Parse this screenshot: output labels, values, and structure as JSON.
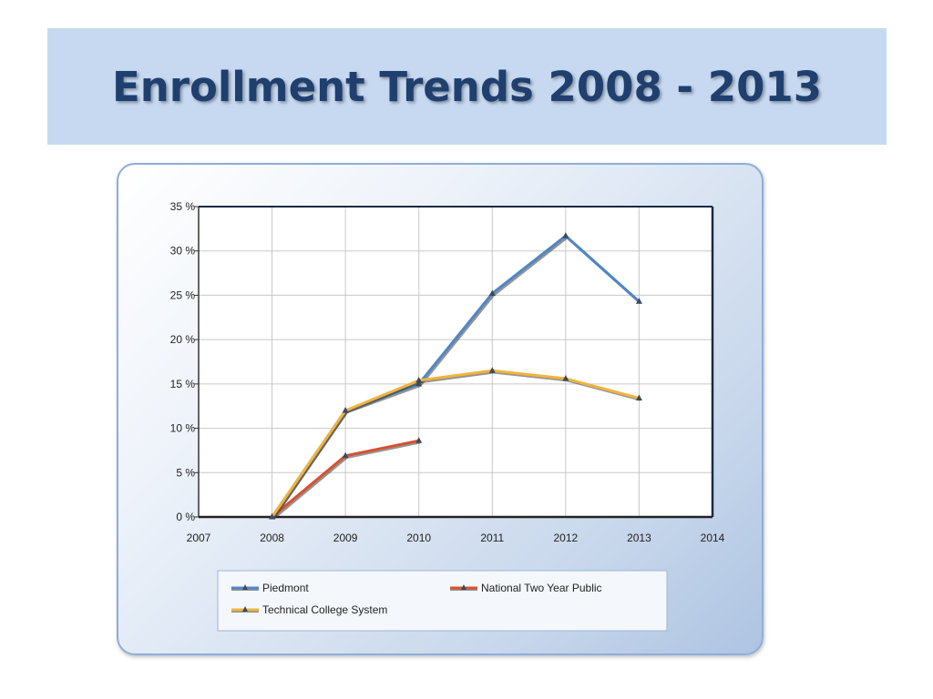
{
  "slide": {
    "title": "Enrollment Trends 2008 - 2013"
  },
  "chart_data": {
    "type": "line",
    "title": "",
    "xlabel": "",
    "ylabel": "",
    "xlim": [
      2007,
      2014
    ],
    "ylim": [
      0,
      35
    ],
    "x_ticks": [
      "2007",
      "2008",
      "2009",
      "2010",
      "2011",
      "2012",
      "2013",
      "2014"
    ],
    "y_ticks": [
      "0 %",
      "5 %",
      "10 %",
      "15 %",
      "20 %",
      "25 %",
      "30 %",
      "35 %"
    ],
    "grid": true,
    "legend_position": "bottom",
    "series": [
      {
        "name": "Piedmont",
        "color": "#4f86c6",
        "points": [
          [
            2008,
            0
          ],
          [
            2009,
            12
          ],
          [
            2010,
            15
          ],
          [
            2011,
            25.2
          ],
          [
            2012,
            31.7
          ],
          [
            2013,
            24.3
          ]
        ]
      },
      {
        "name": "National Two Year Public",
        "color": "#d9502f",
        "points": [
          [
            2008,
            0
          ],
          [
            2009,
            6.9
          ],
          [
            2010,
            8.6
          ]
        ]
      },
      {
        "name": "Technical College System",
        "color": "#f0b43c",
        "points": [
          [
            2008,
            0
          ],
          [
            2009,
            12
          ],
          [
            2010,
            15.4
          ],
          [
            2011,
            16.5
          ],
          [
            2012,
            15.6
          ],
          [
            2013,
            13.4
          ]
        ]
      }
    ]
  }
}
